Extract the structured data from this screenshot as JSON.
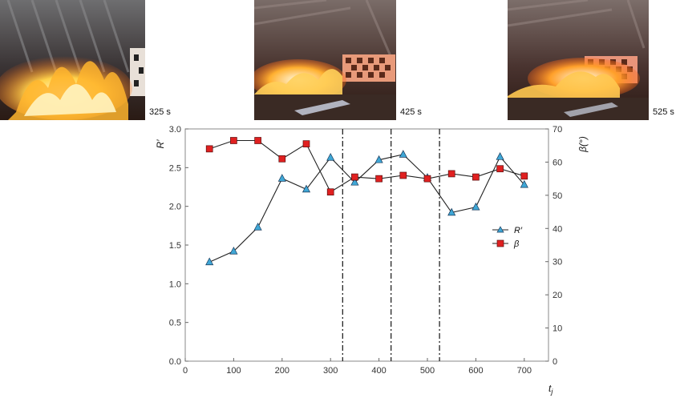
{
  "photos": [
    {
      "time": "325 s",
      "t": 325
    },
    {
      "time": "425 s",
      "t": 425
    },
    {
      "time": "525 s",
      "t": 525
    }
  ],
  "chart_data": {
    "type": "line",
    "xlabel": "t",
    "xlabel_sub": "j",
    "ylabel_left": "R′",
    "ylabel_right": "β(°)",
    "xlim": [
      0,
      750
    ],
    "ylim_left": [
      0,
      3.0
    ],
    "ylim_right": [
      0,
      70
    ],
    "x_ticks": [
      0,
      100,
      200,
      300,
      400,
      500,
      600,
      700
    ],
    "y_ticks_left": [
      "0.0",
      "0.5",
      "1.0",
      "1.5",
      "2.0",
      "2.5",
      "3.0"
    ],
    "y_ticks_right": [
      0,
      10,
      20,
      30,
      40,
      50,
      60,
      70
    ],
    "vlines": [
      325,
      425,
      525
    ],
    "legend_position": "right-middle",
    "series": [
      {
        "name": "R′",
        "axis": "left",
        "marker": "triangle",
        "color": "#3fa7d6",
        "x": [
          50,
          100,
          150,
          200,
          250,
          300,
          350,
          400,
          450,
          500,
          550,
          600,
          650,
          700
        ],
        "y": [
          1.28,
          1.42,
          1.73,
          2.36,
          2.22,
          2.63,
          2.31,
          2.6,
          2.67,
          2.37,
          1.92,
          1.99,
          2.64,
          2.28
        ]
      },
      {
        "name": "β",
        "axis": "right",
        "marker": "square",
        "color": "#e02020",
        "x": [
          50,
          100,
          150,
          200,
          250,
          300,
          350,
          400,
          450,
          500,
          550,
          600,
          650,
          700
        ],
        "y": [
          64,
          66.5,
          66.5,
          61,
          65.5,
          51,
          55.5,
          55,
          56,
          55,
          56.5,
          55.5,
          58,
          55.8
        ]
      }
    ]
  }
}
